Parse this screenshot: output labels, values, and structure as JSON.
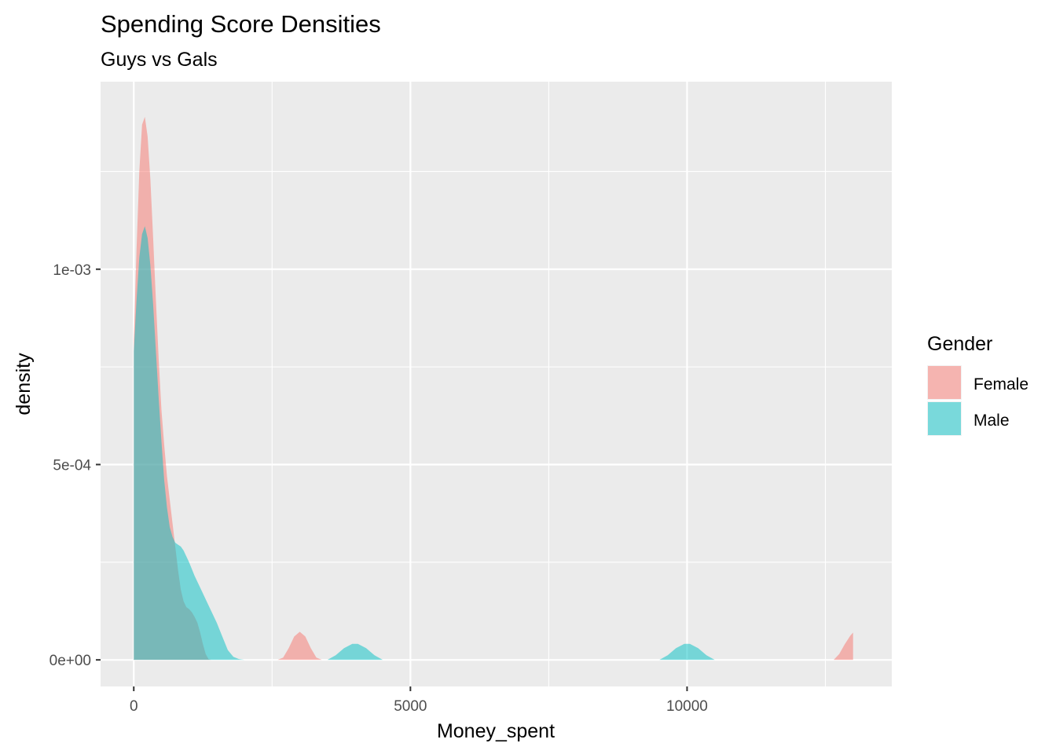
{
  "chart_data": {
    "type": "area",
    "subtype": "density",
    "title": "Spending Score Densities",
    "subtitle": "Guys vs Gals",
    "xlabel": "Money_spent",
    "ylabel": "density",
    "xlim": [
      -600,
      13700
    ],
    "ylim": [
      -6.8e-05,
      0.00148
    ],
    "x_ticks": [
      {
        "value": 0,
        "label": "0"
      },
      {
        "value": 5000,
        "label": "5000"
      },
      {
        "value": 10000,
        "label": "10000"
      }
    ],
    "x_minor": [
      2500,
      7500,
      12500
    ],
    "y_ticks": [
      {
        "value": 0,
        "label": "0e+00"
      },
      {
        "value": 0.0005,
        "label": "5e-04"
      },
      {
        "value": 0.001,
        "label": "1e-03"
      }
    ],
    "y_minor": [
      0.00025,
      0.00075,
      0.00125
    ],
    "grid": true,
    "legend": {
      "title": "Gender",
      "position": "right"
    },
    "series": [
      {
        "name": "Female",
        "color": "#F8766D",
        "opacity": 0.5,
        "points": [
          [
            0,
            0.00082
          ],
          [
            50,
            0.00105
          ],
          [
            100,
            0.00125
          ],
          [
            150,
            0.00137
          ],
          [
            200,
            0.00139
          ],
          [
            250,
            0.00134
          ],
          [
            300,
            0.00123
          ],
          [
            350,
            0.00108
          ],
          [
            400,
            0.00092
          ],
          [
            450,
            0.00077
          ],
          [
            500,
            0.00064
          ],
          [
            550,
            0.00055
          ],
          [
            600,
            0.00047
          ],
          [
            650,
            0.00041
          ],
          [
            700,
            0.00035
          ],
          [
            750,
            0.00029
          ],
          [
            800,
            0.00023
          ],
          [
            850,
            0.00018
          ],
          [
            900,
            0.00015
          ],
          [
            950,
            0.000135
          ],
          [
            1000,
            0.00013
          ],
          [
            1050,
            0.000122
          ],
          [
            1100,
            0.00011
          ],
          [
            1150,
            9.5e-05
          ],
          [
            1200,
            7e-05
          ],
          [
            1250,
            4e-05
          ],
          [
            1300,
            1.5e-05
          ],
          [
            1350,
            2e-06
          ],
          [
            1400,
            0
          ],
          [
            2600,
            0
          ],
          [
            2700,
            6e-06
          ],
          [
            2800,
            3e-05
          ],
          [
            2900,
            6e-05
          ],
          [
            3000,
            7.2e-05
          ],
          [
            3100,
            6e-05
          ],
          [
            3200,
            3e-05
          ],
          [
            3300,
            6e-06
          ],
          [
            3400,
            0
          ],
          [
            12650,
            0
          ],
          [
            12750,
            1.5e-05
          ],
          [
            12850,
            4e-05
          ],
          [
            12950,
            6.2e-05
          ],
          [
            13000,
            7e-05
          ]
        ]
      },
      {
        "name": "Male",
        "color": "#00BFC4",
        "opacity": 0.5,
        "points": [
          [
            0,
            0.00079
          ],
          [
            50,
            0.00092
          ],
          [
            100,
            0.00103
          ],
          [
            150,
            0.00109
          ],
          [
            200,
            0.00111
          ],
          [
            250,
            0.00108
          ],
          [
            300,
            0.00101
          ],
          [
            350,
            0.00091
          ],
          [
            400,
            0.00079
          ],
          [
            450,
            0.00067
          ],
          [
            500,
            0.00056
          ],
          [
            550,
            0.00046
          ],
          [
            600,
            0.00039
          ],
          [
            650,
            0.00034
          ],
          [
            700,
            0.000315
          ],
          [
            750,
            0.0003
          ],
          [
            800,
            0.000295
          ],
          [
            850,
            0.00029
          ],
          [
            900,
            0.00028
          ],
          [
            950,
            0.000265
          ],
          [
            1000,
            0.00025
          ],
          [
            1100,
            0.000215
          ],
          [
            1200,
            0.000185
          ],
          [
            1300,
            0.000155
          ],
          [
            1400,
            0.000125
          ],
          [
            1500,
            9.5e-05
          ],
          [
            1600,
            6e-05
          ],
          [
            1700,
            2.5e-05
          ],
          [
            1800,
            8e-06
          ],
          [
            1900,
            2e-06
          ],
          [
            2000,
            0
          ],
          [
            3500,
            0
          ],
          [
            3650,
            1.2e-05
          ],
          [
            3800,
            3e-05
          ],
          [
            3950,
            4.1e-05
          ],
          [
            4050,
            4.1e-05
          ],
          [
            4200,
            3e-05
          ],
          [
            4350,
            1.2e-05
          ],
          [
            4500,
            0
          ],
          [
            9500,
            0
          ],
          [
            9650,
            1.2e-05
          ],
          [
            9800,
            3e-05
          ],
          [
            9950,
            4.1e-05
          ],
          [
            10050,
            4.1e-05
          ],
          [
            10200,
            3e-05
          ],
          [
            10350,
            1.2e-05
          ],
          [
            10500,
            0
          ]
        ]
      }
    ]
  }
}
